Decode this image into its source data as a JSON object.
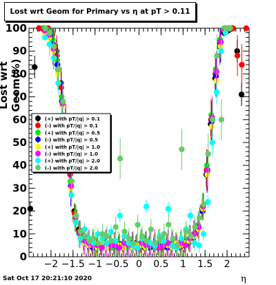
{
  "title": "Lost wrt Geom for Primary vs   η at pT > 0.11",
  "footer": "Sat Oct 17 20:21:10 2020",
  "chart_data": {
    "type": "scatter",
    "title": "Lost wrt Geom for Primary vs   η at pT > 0.11",
    "xlabel": "η",
    "ylabel": "Lost wrt Geom(%)",
    "xlim": [
      -2.5,
      2.5
    ],
    "ylim": [
      0,
      100
    ],
    "xticks": [
      -2,
      -1.5,
      -1,
      -0.5,
      0,
      0.5,
      1,
      1.5,
      2
    ],
    "xtick_labels": [
      "−2",
      "−1.5",
      "−1",
      "−0.5",
      "0",
      "0.5",
      "1",
      "1.5",
      "2"
    ],
    "yticks": [
      0,
      10,
      20,
      30,
      40,
      50,
      60,
      70,
      80,
      90,
      100
    ],
    "ytick_labels": [
      "0",
      "10",
      "20",
      "30",
      "40",
      "50",
      "60",
      "70",
      "80",
      "90",
      "100"
    ],
    "legend_position": "middle-left",
    "grid": false,
    "x": [
      -2.45,
      -2.35,
      -2.25,
      -2.15,
      -2.05,
      -1.95,
      -1.85,
      -1.75,
      -1.65,
      -1.55,
      -1.45,
      -1.35,
      -1.25,
      -1.15,
      -1.05,
      -0.95,
      -0.85,
      -0.75,
      -0.65,
      -0.55,
      -0.45,
      -0.35,
      -0.25,
      -0.15,
      -0.05,
      0.05,
      0.15,
      0.25,
      0.35,
      0.45,
      0.55,
      0.65,
      0.75,
      0.85,
      0.95,
      1.05,
      1.15,
      1.25,
      1.35,
      1.45,
      1.55,
      1.65,
      1.75,
      1.85,
      1.95,
      2.05,
      2.15,
      2.25,
      2.35,
      2.45
    ],
    "series": [
      {
        "name": "(+) with pT/|q| > 0.1",
        "color": "#000000",
        "values": [
          21,
          83,
          100,
          100,
          99,
          97,
          90,
          76,
          60,
          38,
          20,
          12,
          8,
          6,
          5,
          5,
          4,
          6,
          5,
          4,
          6,
          5,
          4,
          5,
          6,
          5,
          4,
          6,
          5,
          4,
          5,
          6,
          4,
          5,
          6,
          5,
          6,
          8,
          12,
          20,
          36,
          58,
          78,
          92,
          98,
          99,
          100,
          90,
          71,
          null
        ]
      },
      {
        "name": "(-) with pT/|q| > 0.1",
        "color": "#ff0000",
        "values": [
          null,
          null,
          100,
          100,
          100,
          98,
          88,
          74,
          58,
          36,
          19,
          11,
          7,
          6,
          5,
          4,
          5,
          5,
          4,
          6,
          5,
          4,
          5,
          4,
          5,
          6,
          5,
          4,
          5,
          6,
          4,
          5,
          5,
          6,
          4,
          6,
          7,
          9,
          13,
          21,
          38,
          60,
          80,
          93,
          99,
          100,
          100,
          88,
          84,
          100
        ]
      },
      {
        "name": "(+) with pT/|q| > 0.5",
        "color": "#00ee00",
        "values": [
          null,
          null,
          null,
          100,
          99,
          95,
          86,
          70,
          55,
          33,
          17,
          10,
          7,
          5,
          6,
          4,
          5,
          6,
          5,
          4,
          5,
          6,
          4,
          5,
          4,
          6,
          5,
          5,
          4,
          6,
          5,
          4,
          6,
          5,
          5,
          6,
          8,
          10,
          14,
          22,
          40,
          62,
          82,
          95,
          100,
          100,
          null,
          null,
          null,
          null
        ]
      },
      {
        "name": "(-) with pT/|q| > 0.5",
        "color": "#0000ff",
        "values": [
          null,
          null,
          null,
          99,
          98,
          93,
          84,
          68,
          52,
          31,
          16,
          10,
          6,
          5,
          4,
          5,
          4,
          5,
          6,
          5,
          4,
          5,
          5,
          6,
          4,
          5,
          6,
          4,
          5,
          5,
          6,
          4,
          5,
          6,
          5,
          5,
          7,
          9,
          13,
          20,
          37,
          59,
          79,
          94,
          99,
          100,
          null,
          null,
          null,
          null
        ]
      },
      {
        "name": "(+) with pT/|q| > 1.0",
        "color": "#ffff00",
        "values": [
          null,
          null,
          null,
          98,
          96,
          90,
          80,
          66,
          50,
          30,
          16,
          9,
          6,
          5,
          5,
          4,
          6,
          4,
          5,
          6,
          5,
          4,
          6,
          4,
          5,
          5,
          4,
          6,
          5,
          4,
          6,
          5,
          4,
          6,
          5,
          6,
          7,
          9,
          12,
          21,
          36,
          57,
          77,
          92,
          99,
          100,
          null,
          null,
          null,
          null
        ]
      },
      {
        "name": "(-) with pT/|q| > 1.0",
        "color": "#ff00ff",
        "values": [
          null,
          null,
          null,
          99,
          97,
          91,
          82,
          67,
          51,
          31,
          17,
          10,
          7,
          6,
          5,
          5,
          4,
          6,
          5,
          5,
          4,
          6,
          5,
          5,
          4,
          6,
          5,
          5,
          6,
          4,
          5,
          6,
          5,
          4,
          6,
          5,
          8,
          10,
          13,
          22,
          38,
          61,
          81,
          94,
          99,
          100,
          null,
          null,
          null,
          null
        ]
      },
      {
        "name": "(+) with pT/|q| > 2.0",
        "color": "#00ffff",
        "values": [
          null,
          null,
          null,
          96,
          93,
          87,
          76,
          62,
          46,
          27,
          15,
          8,
          12,
          8,
          6,
          10,
          8,
          6,
          11,
          7,
          18,
          9,
          6,
          5,
          4,
          8,
          22,
          6,
          5,
          9,
          7,
          21,
          5,
          4,
          8,
          12,
          18,
          6,
          5,
          10,
          24,
          50,
          72,
          90,
          98,
          100,
          null,
          null,
          null,
          null
        ]
      },
      {
        "name": "(-) with pT/|q| > 2.0",
        "color": "#66cc66",
        "values": [
          null,
          null,
          null,
          100,
          98,
          92,
          82,
          68,
          52,
          33,
          18,
          11,
          9,
          7,
          8,
          6,
          10,
          9,
          7,
          13,
          43,
          11,
          8,
          6,
          14,
          9,
          7,
          12,
          6,
          8,
          10,
          14,
          8,
          5,
          47,
          11,
          9,
          13,
          17,
          23,
          45,
          60,
          88,
          60,
          100,
          100,
          null,
          null,
          null,
          null
        ]
      }
    ]
  }
}
